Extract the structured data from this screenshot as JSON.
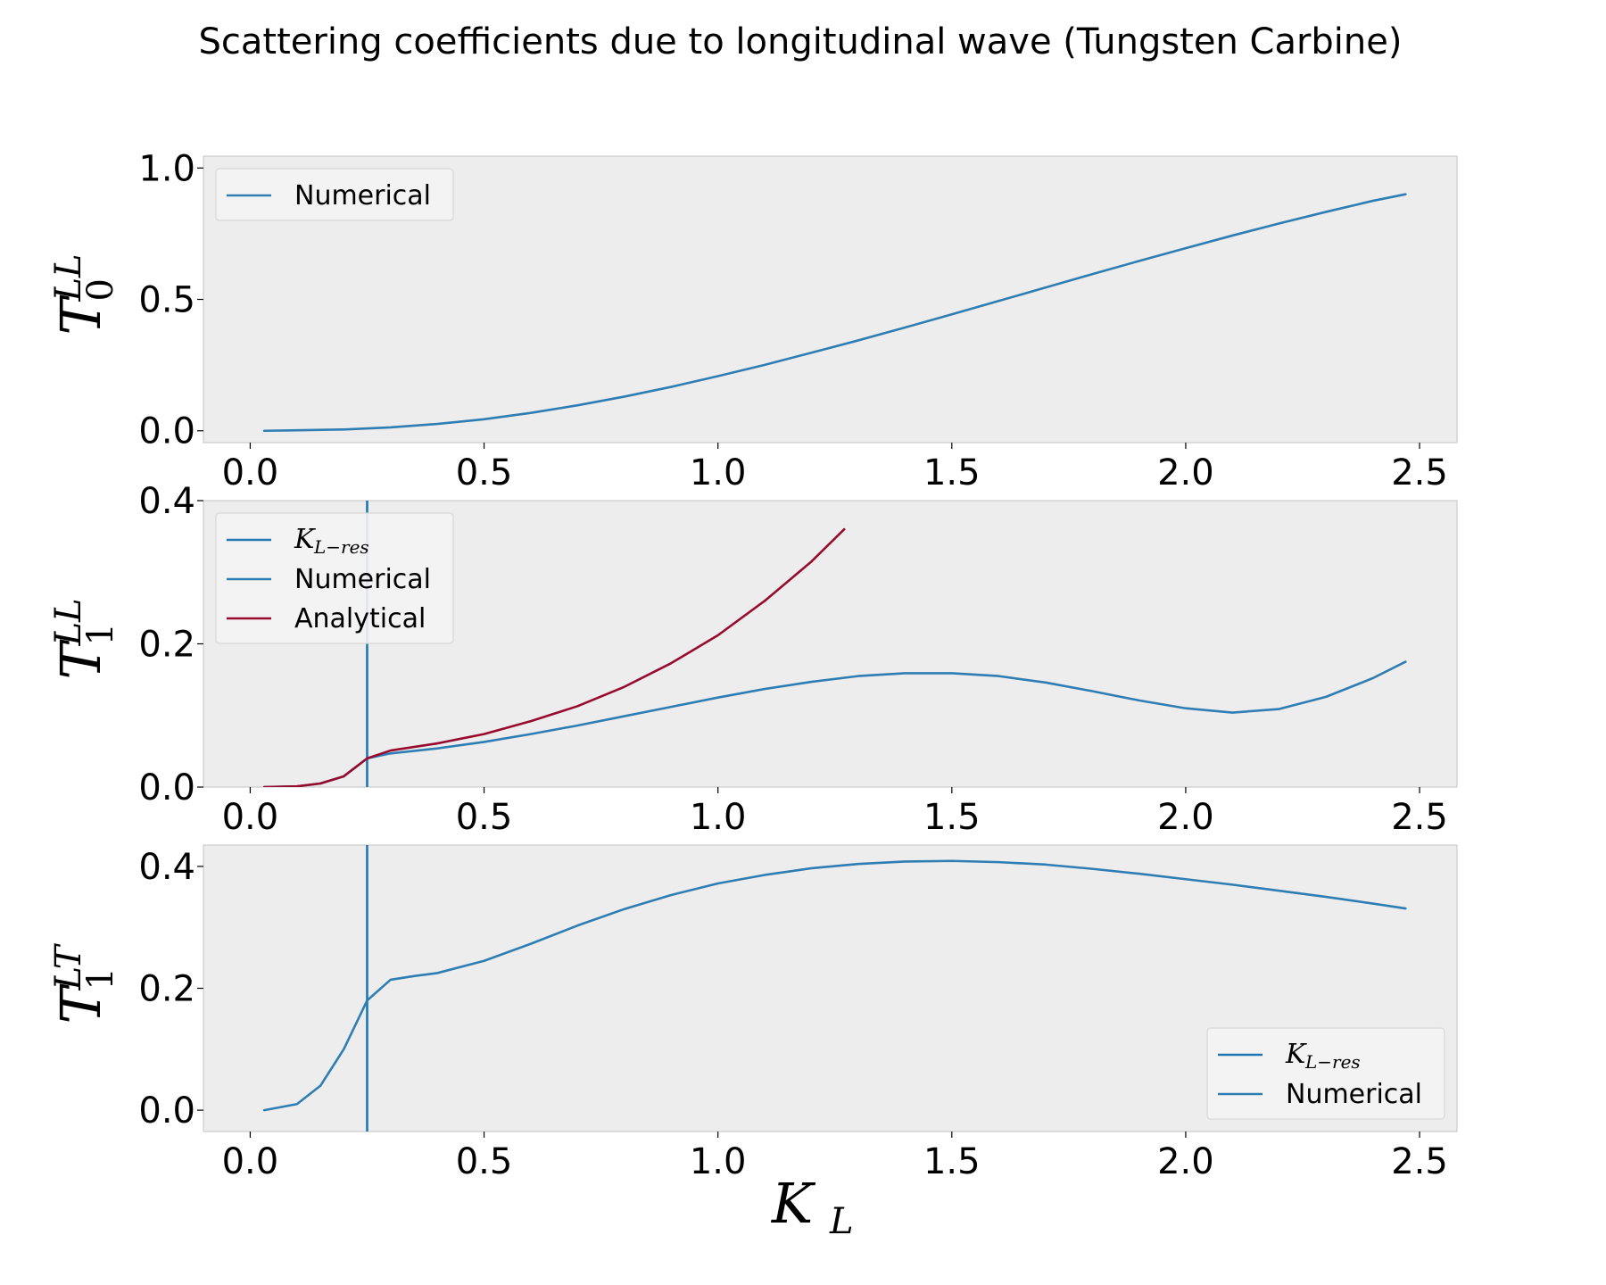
{
  "title": "Scattering coefficients due to longitudinal wave (Tungsten Carbine)",
  "xlabel": {
    "main": "K",
    "sub": "L"
  },
  "colors": {
    "axes_face": "#ededed",
    "numerical": "#2e7eb4",
    "analytical": "#980b2e",
    "resonance": "#1f77b4",
    "spine": "#cccccc"
  },
  "chart_data": [
    {
      "type": "line",
      "ylabel": {
        "main": "T",
        "sup": "LL",
        "sub": "0"
      },
      "xlim": [
        -0.1,
        2.58
      ],
      "ylim": [
        -0.045,
        1.045
      ],
      "xticks": [
        0.0,
        0.5,
        1.0,
        1.5,
        2.0,
        2.5
      ],
      "xtick_labels": [
        "0.0",
        "0.5",
        "1.0",
        "1.5",
        "2.0",
        "2.5"
      ],
      "yticks": [
        0.0,
        0.5,
        1.0
      ],
      "ytick_labels": [
        "0.0",
        "0.5",
        "1.0"
      ],
      "legend_position": "top-left",
      "legend": [
        {
          "label": "Numerical",
          "math": false
        }
      ],
      "series": [
        {
          "name": "Numerical",
          "color": "numerical",
          "x": [
            0.03,
            0.1,
            0.2,
            0.3,
            0.4,
            0.5,
            0.6,
            0.7,
            0.8,
            0.9,
            1.0,
            1.1,
            1.2,
            1.3,
            1.4,
            1.5,
            1.6,
            1.7,
            1.8,
            1.9,
            2.0,
            2.1,
            2.2,
            2.3,
            2.4,
            2.47
          ],
          "y": [
            0.0,
            0.002,
            0.005,
            0.013,
            0.026,
            0.044,
            0.068,
            0.097,
            0.13,
            0.167,
            0.208,
            0.251,
            0.297,
            0.344,
            0.393,
            0.443,
            0.494,
            0.545,
            0.596,
            0.646,
            0.695,
            0.743,
            0.789,
            0.833,
            0.875,
            0.9
          ]
        }
      ],
      "vlines": []
    },
    {
      "type": "line",
      "ylabel": {
        "main": "T",
        "sup": "LL",
        "sub": "1"
      },
      "xlim": [
        -0.1,
        2.58
      ],
      "ylim": [
        0.0,
        0.4
      ],
      "xticks": [
        0.0,
        0.5,
        1.0,
        1.5,
        2.0,
        2.5
      ],
      "xtick_labels": [
        "0.0",
        "0.5",
        "1.0",
        "1.5",
        "2.0",
        "2.5"
      ],
      "yticks": [
        0.0,
        0.2,
        0.4
      ],
      "ytick_labels": [
        "0.0",
        "0.2",
        "0.4"
      ],
      "legend_position": "top-left",
      "legend": [
        {
          "label": "K",
          "sub": "L−res",
          "math": true
        },
        {
          "label": "Numerical",
          "math": false
        },
        {
          "label": "Analytical",
          "math": false
        }
      ],
      "series": [
        {
          "name": "Numerical",
          "color": "numerical",
          "x": [
            0.03,
            0.1,
            0.15,
            0.2,
            0.25,
            0.3,
            0.4,
            0.5,
            0.6,
            0.7,
            0.8,
            0.9,
            1.0,
            1.1,
            1.2,
            1.3,
            1.4,
            1.5,
            1.6,
            1.7,
            1.8,
            1.9,
            2.0,
            2.1,
            2.2,
            2.3,
            2.4,
            2.47
          ],
          "y": [
            0.0,
            0.001,
            0.005,
            0.015,
            0.04,
            0.047,
            0.054,
            0.063,
            0.074,
            0.086,
            0.099,
            0.112,
            0.125,
            0.137,
            0.147,
            0.155,
            0.159,
            0.159,
            0.155,
            0.146,
            0.134,
            0.121,
            0.11,
            0.104,
            0.109,
            0.126,
            0.152,
            0.175
          ]
        },
        {
          "name": "Analytical",
          "color": "analytical",
          "x": [
            0.03,
            0.1,
            0.15,
            0.2,
            0.25,
            0.3,
            0.4,
            0.5,
            0.6,
            0.7,
            0.8,
            0.9,
            1.0,
            1.1,
            1.2,
            1.27
          ],
          "y": [
            0.0,
            0.001,
            0.005,
            0.015,
            0.04,
            0.051,
            0.061,
            0.074,
            0.092,
            0.113,
            0.14,
            0.173,
            0.212,
            0.26,
            0.315,
            0.36
          ]
        }
      ],
      "vlines": [
        {
          "x": 0.25,
          "color": "resonance"
        }
      ]
    },
    {
      "type": "line",
      "ylabel": {
        "main": "T",
        "sup": "LT",
        "sub": "1"
      },
      "xlim": [
        -0.1,
        2.58
      ],
      "ylim": [
        -0.035,
        0.435
      ],
      "xticks": [
        0.0,
        0.5,
        1.0,
        1.5,
        2.0,
        2.5
      ],
      "xtick_labels": [
        "0.0",
        "0.5",
        "1.0",
        "1.5",
        "2.0",
        "2.5"
      ],
      "yticks": [
        0.0,
        0.2,
        0.4
      ],
      "ytick_labels": [
        "0.0",
        "0.2",
        "0.4"
      ],
      "legend_position": "bottom-right",
      "legend": [
        {
          "label": "K",
          "sub": "L−res",
          "math": true
        },
        {
          "label": "Numerical",
          "math": false
        }
      ],
      "series": [
        {
          "name": "Numerical",
          "color": "numerical",
          "x": [
            0.03,
            0.1,
            0.15,
            0.2,
            0.25,
            0.3,
            0.35,
            0.4,
            0.5,
            0.6,
            0.7,
            0.8,
            0.9,
            1.0,
            1.1,
            1.2,
            1.3,
            1.4,
            1.5,
            1.6,
            1.7,
            1.8,
            1.9,
            2.0,
            2.1,
            2.2,
            2.3,
            2.4,
            2.47
          ],
          "y": [
            0.0,
            0.01,
            0.04,
            0.1,
            0.18,
            0.214,
            0.22,
            0.225,
            0.245,
            0.273,
            0.303,
            0.33,
            0.353,
            0.372,
            0.386,
            0.397,
            0.404,
            0.408,
            0.409,
            0.407,
            0.403,
            0.396,
            0.388,
            0.379,
            0.37,
            0.36,
            0.35,
            0.339,
            0.331
          ]
        }
      ],
      "vlines": [
        {
          "x": 0.25,
          "color": "resonance"
        }
      ]
    }
  ]
}
